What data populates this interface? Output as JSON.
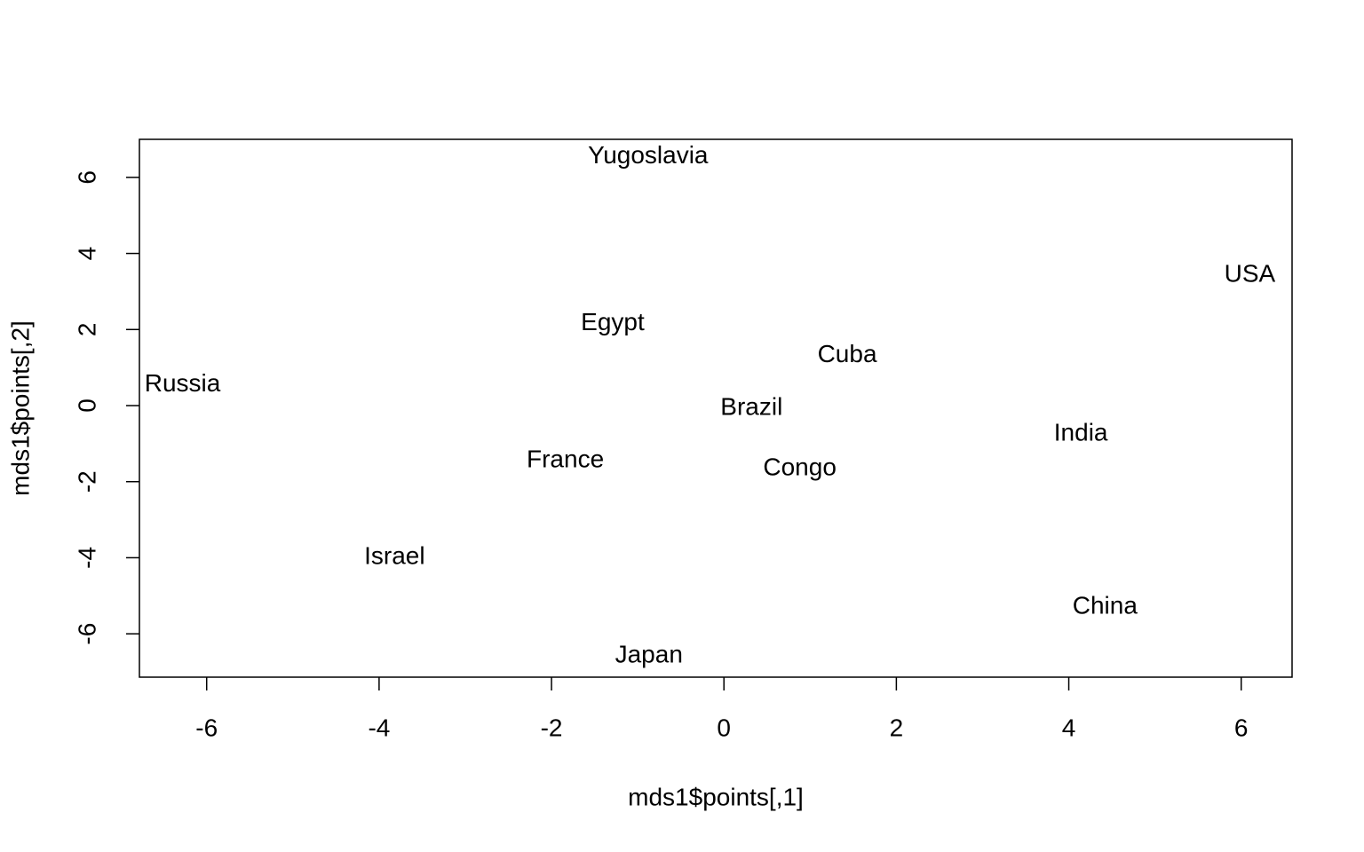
{
  "chart_data": {
    "type": "scatter",
    "xlabel": "mds1$points[,1]",
    "ylabel": "mds1$points[,2]",
    "labels": [
      "Yugoslavia",
      "USA",
      "Egypt",
      "Cuba",
      "Russia",
      "Brazil",
      "India",
      "France",
      "Congo",
      "Israel",
      "China",
      "Japan"
    ],
    "x": [
      -0.88,
      6.1,
      -1.29,
      1.43,
      -6.28,
      0.32,
      4.14,
      -1.84,
      0.88,
      -3.82,
      4.42,
      -0.87
    ],
    "y": [
      6.54,
      3.43,
      2.15,
      1.31,
      0.54,
      -0.07,
      -0.75,
      -1.45,
      -1.66,
      -3.99,
      -5.3,
      -6.58
    ],
    "color": "#000000",
    "xlim": [
      -6.78,
      6.59
    ],
    "xticks": [
      -6,
      -4,
      -2,
      0,
      2,
      4,
      6
    ],
    "ylim": [
      -7.14,
      7.0
    ],
    "yticks": [
      -6,
      -4,
      -2,
      0,
      2,
      4,
      6
    ],
    "grid": false
  }
}
